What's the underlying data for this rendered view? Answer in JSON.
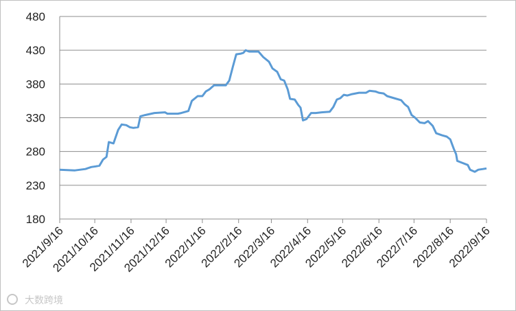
{
  "chart_data": {
    "type": "line",
    "x": [
      "2021/9/16",
      "2021/9/29",
      "2021/10/8",
      "2021/10/13",
      "2021/10/17",
      "2021/10/20",
      "2021/10/23",
      "2021/10/26",
      "2021/10/28",
      "2021/11/1",
      "2021/11/5",
      "2021/11/8",
      "2021/11/12",
      "2021/11/15",
      "2021/11/18",
      "2021/11/22",
      "2021/11/24",
      "2021/11/28",
      "2021/12/6",
      "2021/12/15",
      "2021/12/17",
      "2021/12/26",
      "2021/12/29",
      "2022/1/4",
      "2022/1/7",
      "2022/1/12",
      "2022/1/16",
      "2022/1/19",
      "2022/1/22",
      "2022/1/26",
      "2022/2/5",
      "2022/2/8",
      "2022/2/11",
      "2022/2/14",
      "2022/2/18",
      "2022/2/20",
      "2022/2/22",
      "2022/2/25",
      "2022/3/5",
      "2022/3/9",
      "2022/3/14",
      "2022/3/17",
      "2022/3/21",
      "2022/3/24",
      "2022/3/27",
      "2022/3/30",
      "2022/4/1",
      "2022/4/5",
      "2022/4/8",
      "2022/4/10",
      "2022/4/12",
      "2022/4/15",
      "2022/4/19",
      "2022/4/23",
      "2022/4/28",
      "2022/5/5",
      "2022/5/8",
      "2022/5/11",
      "2022/5/14",
      "2022/5/17",
      "2022/5/20",
      "2022/5/24",
      "2022/5/30",
      "2022/6/5",
      "2022/6/8",
      "2022/6/13",
      "2022/6/16",
      "2022/6/20",
      "2022/6/23",
      "2022/6/29",
      "2022/7/5",
      "2022/7/8",
      "2022/7/11",
      "2022/7/14",
      "2022/7/17",
      "2022/7/21",
      "2022/7/25",
      "2022/7/28",
      "2022/8/1",
      "2022/8/4",
      "2022/8/9",
      "2022/8/13",
      "2022/8/16",
      "2022/8/19",
      "2022/8/21",
      "2022/8/22",
      "2022/8/25",
      "2022/8/31",
      "2022/9/2",
      "2022/9/6",
      "2022/9/9",
      "2022/9/13",
      "2022/9/16"
    ],
    "values": [
      253,
      252,
      254,
      257,
      258,
      259,
      268,
      272,
      294,
      292,
      312,
      320,
      319,
      316,
      315,
      316,
      332,
      334,
      337,
      338,
      336,
      336,
      337,
      340,
      355,
      362,
      362,
      369,
      372,
      378,
      378,
      385,
      405,
      424,
      425,
      426,
      430,
      428,
      428,
      420,
      413,
      403,
      398,
      387,
      385,
      372,
      358,
      357,
      349,
      345,
      326,
      328,
      337,
      337,
      338,
      339,
      346,
      357,
      359,
      364,
      363,
      365,
      367,
      367,
      370,
      369,
      367,
      366,
      362,
      359,
      356,
      350,
      346,
      334,
      330,
      323,
      322,
      325,
      318,
      307,
      304,
      302,
      298,
      284,
      276,
      266,
      264,
      260,
      253,
      250,
      253,
      254,
      255
    ],
    "color": "#5b9bd5",
    "xlim": [
      "2021/9/16",
      "2022/9/16"
    ],
    "xticks": [
      "2021/9/16",
      "2021/10/16",
      "2021/11/16",
      "2021/12/16",
      "2022/1/16",
      "2022/2/16",
      "2022/3/16",
      "2022/4/16",
      "2022/5/16",
      "2022/6/16",
      "2022/7/16",
      "2022/8/16",
      "2022/9/16"
    ],
    "ylim": [
      180,
      480
    ],
    "yticks": [
      180,
      230,
      280,
      330,
      380,
      430,
      480
    ],
    "grid": true,
    "watermark": "大数跨境"
  }
}
